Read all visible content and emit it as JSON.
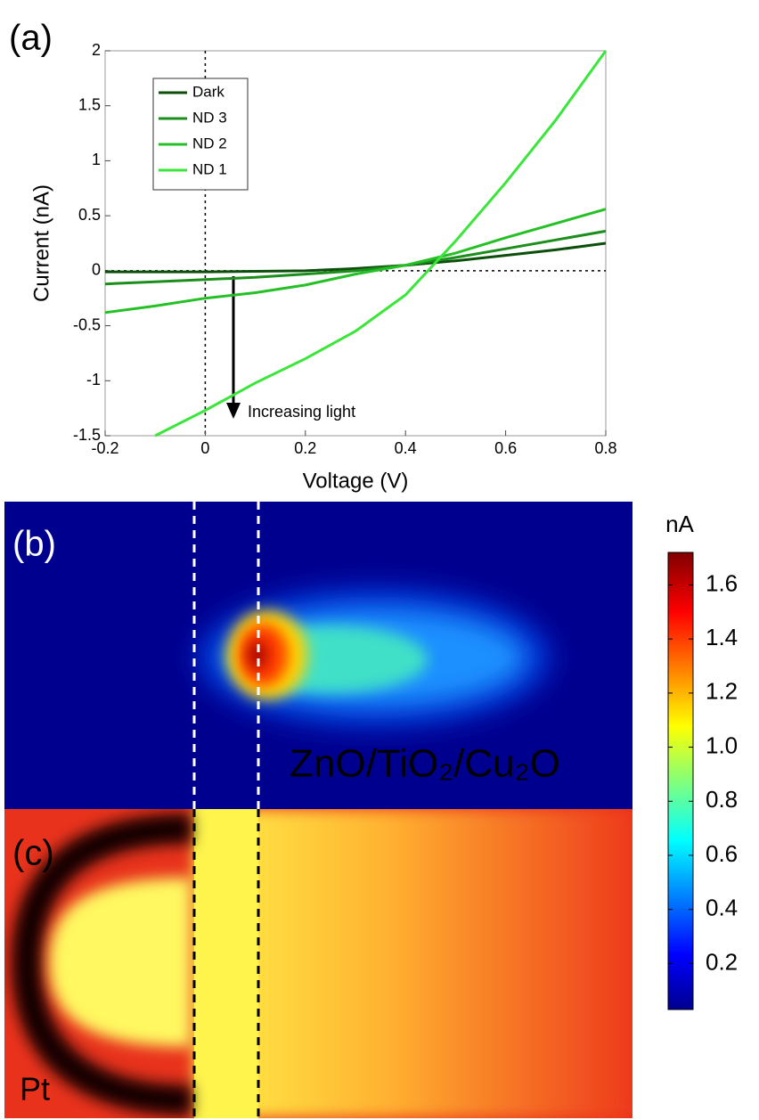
{
  "chart_data": [
    {
      "type": "line",
      "panel_label": "(a)",
      "xlabel": "Voltage (V)",
      "ylabel": "Current (nA)",
      "annotation": "Increasing light",
      "x": [
        -0.2,
        -0.1,
        0,
        0.1,
        0.2,
        0.3,
        0.4,
        0.5,
        0.6,
        0.7,
        0.8
      ],
      "series": [
        {
          "name": "Dark",
          "color": "#0b4f0b",
          "values": [
            -0.01,
            -0.01,
            -0.01,
            -0.005,
            0.0,
            0.02,
            0.05,
            0.09,
            0.14,
            0.19,
            0.25
          ]
        },
        {
          "name": "ND 3",
          "color": "#1b8e1b",
          "values": [
            -0.12,
            -0.1,
            -0.08,
            -0.06,
            -0.03,
            0.0,
            0.05,
            0.12,
            0.2,
            0.28,
            0.36
          ]
        },
        {
          "name": "ND 2",
          "color": "#25c025",
          "values": [
            -0.38,
            -0.32,
            -0.25,
            -0.2,
            -0.13,
            -0.03,
            0.05,
            0.16,
            0.3,
            0.43,
            0.56
          ]
        },
        {
          "name": "ND 1",
          "color": "#3ae63a",
          "values": [
            null,
            -1.5,
            -1.27,
            -1.02,
            -0.8,
            -0.55,
            -0.22,
            0.27,
            0.8,
            1.37,
            2.0
          ]
        }
      ],
      "xlim": [
        -0.2,
        0.8
      ],
      "xticks": [
        -0.2,
        0,
        0.2,
        0.4,
        0.6,
        0.8
      ],
      "ylim": [
        -1.5,
        2
      ],
      "yticks": [
        -1.5,
        -1,
        -0.5,
        0,
        0.5,
        1,
        1.5,
        2
      ],
      "legend": "upper left"
    },
    {
      "type": "heatmap",
      "panel_label": "(b)",
      "colorbar_label": "nA",
      "colormap": "jet",
      "clim": [
        0.03,
        1.72
      ],
      "cticks": [
        0.2,
        0.4,
        0.6,
        0.8,
        {
          "value": 1,
          "label": "1.0"
        },
        1.2,
        1.4,
        1.6
      ]
    },
    {
      "type": "image",
      "panel_label": "(c)",
      "annotations": [
        "ZnO/TiO₂/Cu₂O",
        "Pt"
      ]
    }
  ]
}
